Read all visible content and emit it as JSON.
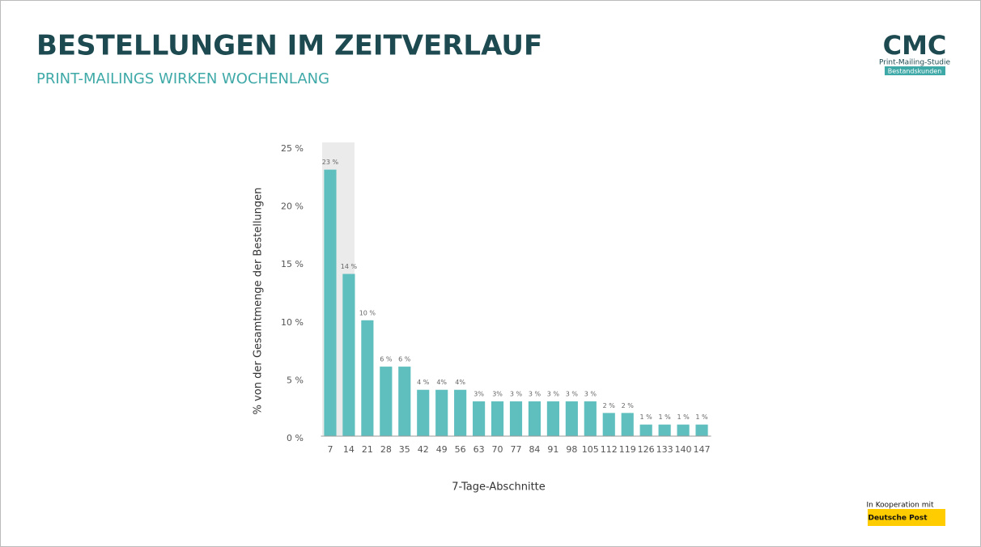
{
  "header": {
    "title": "BESTELLUNGEN IM ZEITVERLAUF",
    "subtitle": "PRINT-MAILINGS WIRKEN WOCHENLANG",
    "logo": "CMC",
    "logo_sub": "Print-Mailing-Studie",
    "logo_tag": "Bestandskunden"
  },
  "footer": {
    "cooperation": "In Kooperation mit",
    "partner": "Deutsche Post"
  },
  "chart_data": {
    "type": "bar",
    "x_label": "7-Tage-Abschnitte",
    "y_label": "% von der Gesamtmenge der Bestellungen",
    "categories": [
      7,
      14,
      21,
      28,
      35,
      42,
      49,
      56,
      63,
      70,
      77,
      84,
      91,
      98,
      105,
      112,
      119,
      126,
      133,
      140,
      147
    ],
    "values": [
      23,
      14,
      10,
      6,
      6,
      4,
      4,
      4,
      3,
      3,
      3,
      3,
      3,
      3,
      3,
      2,
      2,
      1,
      1,
      1,
      1
    ],
    "value_labels": [
      "23 %",
      "14 %",
      "10 %",
      "6 %",
      "6 %",
      "4 %",
      "4%",
      "4%",
      "3%",
      "3%",
      "3 %",
      "3 %",
      "3 %",
      "3 %",
      "3 %",
      "2 %",
      "2 %",
      "1 %",
      "1 %",
      "1 %",
      "1 %"
    ],
    "color": "#5fbfbe",
    "ylim": [
      0,
      25
    ],
    "yticks": [
      {
        "value": 0,
        "label": "0 %"
      },
      {
        "value": 5,
        "label": "5 %"
      },
      {
        "value": 10,
        "label": "10 %"
      },
      {
        "value": 15,
        "label": "15 %"
      },
      {
        "value": 20,
        "label": "20 %"
      },
      {
        "value": 25,
        "label": "25 %"
      }
    ],
    "grid": false
  }
}
